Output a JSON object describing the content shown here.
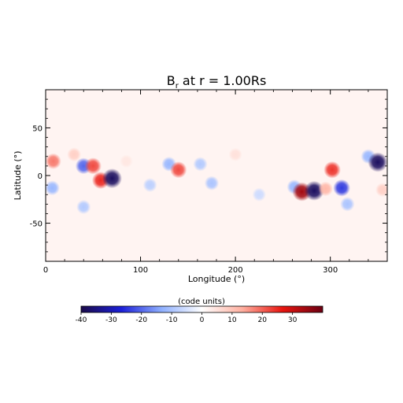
{
  "chart_data": {
    "type": "heatmap",
    "title": "B",
    "title_subscript": "r",
    "title_suffix": " at r = 1.00Rs",
    "xlabel": "Longitude (°)",
    "ylabel": "Latitude (°)",
    "xlim": [
      0,
      360
    ],
    "ylim": [
      -90,
      90
    ],
    "x_ticks": [
      0,
      100,
      200,
      300
    ],
    "y_ticks": [
      -50,
      0,
      50
    ],
    "colorbar": {
      "label": "(code units)",
      "range": [
        -40,
        40
      ],
      "ticks": [
        -40,
        -30,
        -20,
        -10,
        0,
        10,
        20,
        30
      ],
      "colormap": [
        "#1b0b4a",
        "#1b1fd8",
        "#8fb0ff",
        "#ffffff",
        "#ffb0a0",
        "#e8150f",
        "#6b0012"
      ]
    },
    "features": [
      {
        "lon": 8,
        "lat": 15,
        "value": 18
      },
      {
        "lon": 30,
        "lat": 22,
        "value": 8
      },
      {
        "lon": 40,
        "lat": 10,
        "value": -20
      },
      {
        "lon": 50,
        "lat": 10,
        "value": 22
      },
      {
        "lon": 58,
        "lat": -5,
        "value": 25
      },
      {
        "lon": 70,
        "lat": -3,
        "value": -38
      },
      {
        "lon": 7,
        "lat": -13,
        "value": -12
      },
      {
        "lon": 85,
        "lat": 15,
        "value": 4
      },
      {
        "lon": 110,
        "lat": -10,
        "value": -8
      },
      {
        "lon": 40,
        "lat": -33,
        "value": -9
      },
      {
        "lon": 130,
        "lat": 12,
        "value": -12
      },
      {
        "lon": 140,
        "lat": 6,
        "value": 22
      },
      {
        "lon": 163,
        "lat": 12,
        "value": -9
      },
      {
        "lon": 175,
        "lat": -8,
        "value": -10
      },
      {
        "lon": 200,
        "lat": 22,
        "value": 5
      },
      {
        "lon": 225,
        "lat": -20,
        "value": -6
      },
      {
        "lon": 262,
        "lat": -12,
        "value": -12
      },
      {
        "lon": 270,
        "lat": -17,
        "value": 34
      },
      {
        "lon": 283,
        "lat": -16,
        "value": -38
      },
      {
        "lon": 295,
        "lat": -14,
        "value": 12
      },
      {
        "lon": 302,
        "lat": 6,
        "value": 24
      },
      {
        "lon": 312,
        "lat": -13,
        "value": -24
      },
      {
        "lon": 318,
        "lat": -30,
        "value": -10
      },
      {
        "lon": 340,
        "lat": 20,
        "value": -12
      },
      {
        "lon": 350,
        "lat": 14,
        "value": -38
      },
      {
        "lon": 355,
        "lat": -15,
        "value": 8
      }
    ]
  }
}
